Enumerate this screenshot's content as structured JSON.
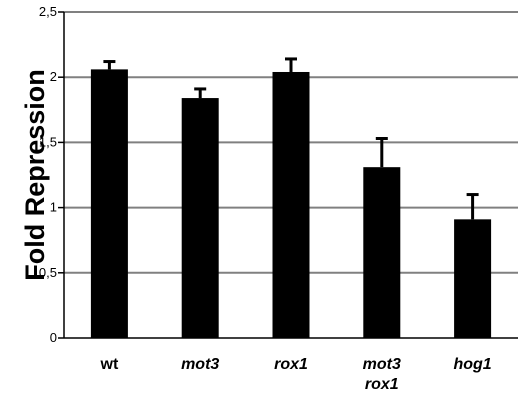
{
  "chart_data": {
    "type": "bar",
    "title": "",
    "xlabel": "",
    "ylabel": "Fold Repression",
    "ylim": [
      0,
      2.5
    ],
    "yticks": [
      {
        "value": 0,
        "label": "0"
      },
      {
        "value": 0.5,
        "label": "0,5"
      },
      {
        "value": 1,
        "label": "1"
      },
      {
        "value": 1.5,
        "label": "1,5"
      },
      {
        "value": 2,
        "label": "2"
      },
      {
        "value": 2.5,
        "label": "2,5"
      }
    ],
    "grid": true,
    "categories": [
      {
        "lines": [
          "wt"
        ],
        "italic": false
      },
      {
        "lines": [
          "mot3"
        ],
        "italic": true
      },
      {
        "lines": [
          "rox1"
        ],
        "italic": true
      },
      {
        "lines": [
          "mot3",
          "rox1"
        ],
        "italic": true
      },
      {
        "lines": [
          "hog1"
        ],
        "italic": true
      }
    ],
    "values": [
      2.06,
      1.84,
      2.04,
      1.31,
      0.91
    ],
    "errors": [
      0.06,
      0.07,
      0.1,
      0.22,
      0.19
    ],
    "colors": {
      "bar": "#000000",
      "grid": "#808080",
      "axis": "#000000"
    }
  }
}
